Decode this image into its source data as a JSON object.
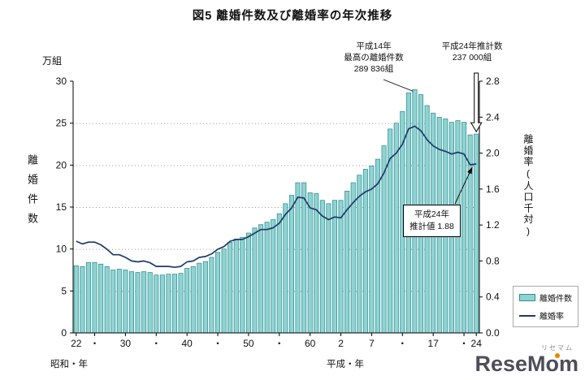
{
  "title": "図5 離婚件数及び離婚率の年次推移",
  "left_axis_unit": "万組",
  "left_axis_title": "離婚件数",
  "right_axis_title": "離婚率(人口千対)",
  "era_left": "昭和・年",
  "era_right": "平成・年",
  "annotation_peak": {
    "line1": "平成14年",
    "line2": "最高の離婚件数",
    "line3": "289 836組"
  },
  "annotation_estimate": {
    "line1": "平成24年推計数",
    "line2": "237 000組"
  },
  "annotation_rate_box": {
    "line1": "平成24年",
    "line2": "推計値 1.88"
  },
  "legend": {
    "bars": "離婚件数",
    "line": "離婚率"
  },
  "logo": {
    "text": "ReseMom",
    "kana": "リセマム"
  },
  "colors": {
    "bar_fill": "#8fd3d3",
    "bar_stroke": "#2f8f8f",
    "line": "#1f3a68",
    "grid": "#9a9a9a",
    "accent": "#ef8200"
  },
  "chart_data": {
    "type": "bar+line",
    "title": "図5 離婚件数及び離婚率の年次推移",
    "start_year": 1947,
    "end_year": 2012,
    "grid": "dotted-horizontal",
    "legend_position": "right",
    "left_axis": {
      "label": "離婚件数",
      "unit": "万組",
      "min": 0,
      "max": 30,
      "ticks": [
        0,
        5,
        10,
        15,
        20,
        25,
        30
      ]
    },
    "right_axis": {
      "label": "離婚率(人口千対)",
      "min": 0,
      "max": 2.8,
      "ticks": [
        0,
        0.4,
        0.8,
        1.2,
        1.6,
        2.0,
        2.4,
        2.8
      ]
    },
    "x_ticks": [
      {
        "year": 1947,
        "label": "22"
      },
      {
        "year": 1950,
        "label": "・"
      },
      {
        "year": 1955,
        "label": "30"
      },
      {
        "year": 1960,
        "label": "・"
      },
      {
        "year": 1965,
        "label": "40"
      },
      {
        "year": 1970,
        "label": "・"
      },
      {
        "year": 1975,
        "label": "50"
      },
      {
        "year": 1980,
        "label": "・"
      },
      {
        "year": 1985,
        "label": "60"
      },
      {
        "year": 1990,
        "label": "2"
      },
      {
        "year": 1995,
        "label": "7"
      },
      {
        "year": 2000,
        "label": "・"
      },
      {
        "year": 2005,
        "label": "17"
      },
      {
        "year": 2010,
        "label": "・"
      },
      {
        "year": 2012,
        "label": "24"
      }
    ],
    "series": [
      {
        "name": "離婚件数",
        "type": "bar",
        "unit": "万組",
        "values": [
          8.0,
          7.9,
          8.4,
          8.4,
          8.2,
          7.9,
          7.5,
          7.6,
          7.5,
          7.3,
          7.2,
          7.3,
          7.2,
          6.9,
          6.9,
          7.0,
          7.0,
          7.1,
          7.7,
          7.9,
          8.3,
          8.5,
          9.0,
          9.6,
          10.0,
          10.8,
          11.2,
          11.4,
          11.9,
          12.5,
          12.9,
          13.2,
          13.5,
          14.2,
          15.4,
          16.4,
          17.9,
          17.9,
          16.7,
          16.6,
          15.8,
          15.4,
          15.8,
          15.8,
          16.9,
          17.9,
          18.8,
          19.5,
          19.9,
          20.7,
          22.3,
          24.3,
          25.0,
          26.4,
          28.6,
          29.0,
          28.4,
          27.1,
          26.2,
          25.7,
          25.5,
          25.1,
          25.3,
          25.1,
          23.6,
          23.7
        ]
      },
      {
        "name": "離婚率",
        "type": "line",
        "unit": "人口千対",
        "values": [
          1.02,
          0.99,
          1.01,
          1.01,
          0.98,
          0.93,
          0.87,
          0.87,
          0.84,
          0.8,
          0.79,
          0.8,
          0.78,
          0.74,
          0.74,
          0.74,
          0.73,
          0.74,
          0.79,
          0.8,
          0.84,
          0.85,
          0.88,
          0.93,
          0.96,
          1.02,
          1.04,
          1.04,
          1.07,
          1.11,
          1.15,
          1.15,
          1.17,
          1.22,
          1.32,
          1.39,
          1.51,
          1.5,
          1.39,
          1.37,
          1.3,
          1.26,
          1.29,
          1.28,
          1.37,
          1.45,
          1.52,
          1.57,
          1.6,
          1.66,
          1.78,
          1.94,
          2.0,
          2.1,
          2.27,
          2.3,
          2.25,
          2.15,
          2.08,
          2.04,
          2.02,
          1.99,
          2.01,
          1.99,
          1.87,
          1.88
        ]
      }
    ],
    "annotations": {
      "peak": {
        "year": 2002,
        "label": "平成14年 最高の離婚件数 289 836組",
        "value": "289 836組"
      },
      "estimate": {
        "year": 2012,
        "label": "平成24年推計数 237 000組",
        "value": "237 000組"
      },
      "rate": {
        "year": 2012,
        "label": "平成24年 推計値 1.88",
        "value": 1.88
      }
    }
  }
}
